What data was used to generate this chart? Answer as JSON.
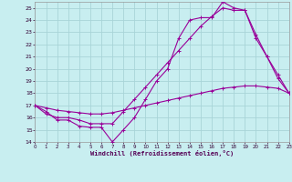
{
  "bg_color": "#c8eef0",
  "grid_color": "#a8d4d8",
  "line_color": "#990099",
  "xlim": [
    0,
    23
  ],
  "ylim": [
    14,
    25.5
  ],
  "xticks": [
    0,
    1,
    2,
    3,
    4,
    5,
    6,
    7,
    8,
    9,
    10,
    11,
    12,
    13,
    14,
    15,
    16,
    17,
    18,
    19,
    20,
    21,
    22,
    23
  ],
  "yticks": [
    14,
    15,
    16,
    17,
    18,
    19,
    20,
    21,
    22,
    23,
    24,
    25
  ],
  "xlabel": "Windchill (Refroidissement éolien,°C)",
  "series": [
    {
      "x": [
        0,
        1,
        2,
        3,
        4,
        5,
        6,
        7,
        8,
        9,
        10,
        11,
        12,
        13,
        14,
        15,
        16,
        17,
        18,
        19,
        20,
        21,
        22,
        23
      ],
      "y": [
        17.0,
        16.5,
        15.8,
        15.8,
        15.3,
        15.2,
        15.2,
        14.0,
        15.0,
        16.0,
        17.5,
        19.0,
        20.0,
        22.5,
        24.0,
        24.2,
        24.2,
        25.5,
        25.0,
        24.8,
        22.5,
        21.0,
        19.2,
        18.0
      ]
    },
    {
      "x": [
        0,
        1,
        2,
        3,
        4,
        5,
        6,
        7,
        8,
        9,
        10,
        11,
        12,
        13,
        14,
        15,
        16,
        17,
        18,
        19,
        20,
        21,
        22,
        23
      ],
      "y": [
        17.0,
        16.3,
        16.0,
        16.0,
        15.8,
        15.5,
        15.5,
        15.5,
        16.5,
        17.5,
        18.5,
        19.5,
        20.5,
        21.5,
        22.5,
        23.5,
        24.3,
        25.0,
        24.8,
        24.8,
        22.8,
        21.0,
        19.5,
        18.0
      ]
    },
    {
      "x": [
        0,
        1,
        2,
        3,
        4,
        5,
        6,
        7,
        8,
        9,
        10,
        11,
        12,
        13,
        14,
        15,
        16,
        17,
        18,
        19,
        20,
        21,
        22,
        23
      ],
      "y": [
        17.0,
        16.8,
        16.6,
        16.5,
        16.4,
        16.3,
        16.3,
        16.4,
        16.6,
        16.8,
        17.0,
        17.2,
        17.4,
        17.6,
        17.8,
        18.0,
        18.2,
        18.4,
        18.5,
        18.6,
        18.6,
        18.5,
        18.4,
        18.0
      ]
    }
  ]
}
